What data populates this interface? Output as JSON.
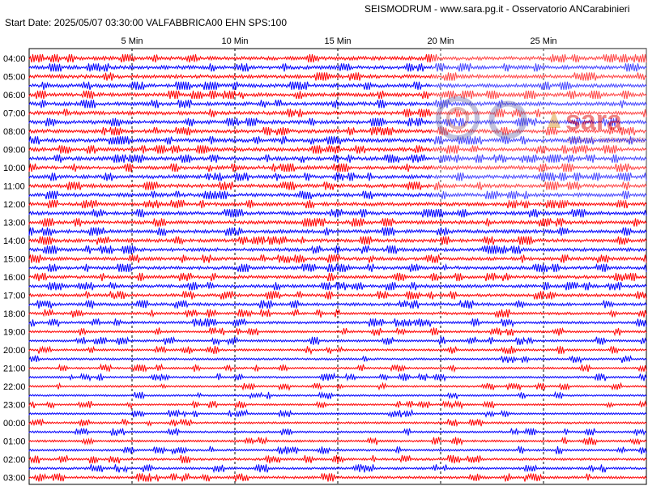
{
  "header": {
    "title": "SEISMODRUM - www.sara.pg.it - Osservatorio ANCarabinieri",
    "start_info": "Start Date: 2025/05/07 03:30:00 VALFABBRICA00 EHN  SPS:100"
  },
  "watermark": {
    "brand": "sara",
    "subtitle": "seismic instruments"
  },
  "colors": {
    "trace_a": "#ff0000",
    "trace_b": "#0000ff",
    "grid": "#000000",
    "background": "#ffffff"
  },
  "chart_data": {
    "type": "line",
    "title": "SEISMODRUM - www.sara.pg.it - Osservatorio ANCarabinieri",
    "xlabel": "",
    "ylabel": "",
    "x_ticks": [
      "5 Min",
      "10 Min",
      "15 Min",
      "20 Min",
      "25 Min"
    ],
    "x_tick_values": [
      5,
      10,
      15,
      20,
      25
    ],
    "xlim": [
      0,
      30
    ],
    "hour_labels": [
      "04:00",
      "05:00",
      "06:00",
      "07:00",
      "08:00",
      "09:00",
      "10:00",
      "11:00",
      "12:00",
      "13:00",
      "14:00",
      "15:00",
      "16:00",
      "17:00",
      "18:00",
      "19:00",
      "20:00",
      "21:00",
      "22:00",
      "23:00",
      "00:00",
      "01:00",
      "02:00",
      "03:00"
    ],
    "traces_per_hour": 2,
    "trace_colors": [
      "#ff0000",
      "#0000ff"
    ],
    "relative_amplitude_per_hour": [
      1.0,
      1.0,
      1.0,
      1.0,
      1.0,
      1.0,
      1.0,
      1.0,
      0.95,
      0.95,
      0.9,
      0.85,
      0.8,
      0.7,
      0.55,
      0.45,
      0.4,
      0.35,
      0.3,
      0.3,
      0.35,
      0.4,
      0.5,
      0.55
    ],
    "grid": "vertical dashed"
  }
}
